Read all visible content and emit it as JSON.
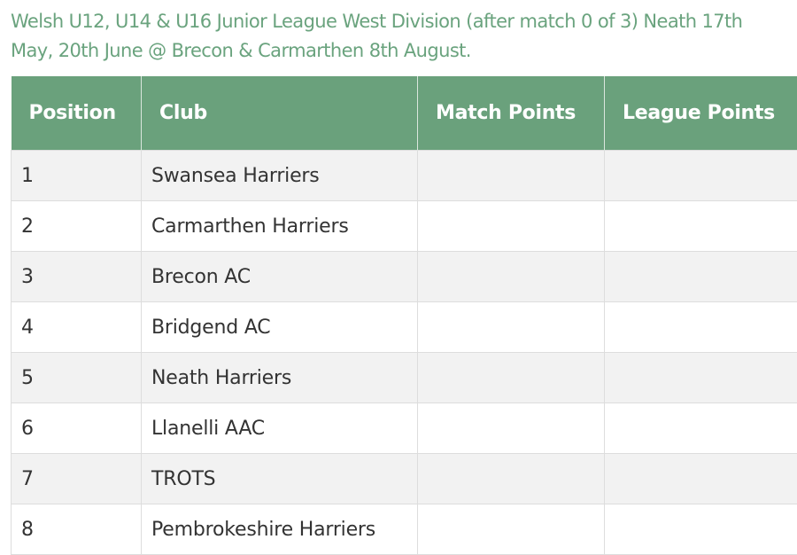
{
  "title": "Welsh U12, U14 & U16 Junior League West Division (after match 0 of 3) Neath 17th May, 20th June @ Brecon & Carmarthen 8th August.",
  "colors": {
    "header_bg": "#6aa17c",
    "title": "#6aa37e",
    "row_alt": "#f2f2f2"
  },
  "table": {
    "headers": [
      "Position",
      "Club",
      "Match Points",
      "League Points"
    ],
    "rows": [
      {
        "position": "1",
        "club": "Swansea Harriers",
        "match_points": "",
        "league_points": ""
      },
      {
        "position": "2",
        "club": "Carmarthen Harriers",
        "match_points": "",
        "league_points": ""
      },
      {
        "position": "3",
        "club": "Brecon AC",
        "match_points": "",
        "league_points": ""
      },
      {
        "position": "4",
        "club": "Bridgend AC",
        "match_points": "",
        "league_points": ""
      },
      {
        "position": "5",
        "club": "Neath Harriers",
        "match_points": "",
        "league_points": ""
      },
      {
        "position": "6",
        "club": "Llanelli AAC",
        "match_points": "",
        "league_points": ""
      },
      {
        "position": "7",
        "club": "TROTS",
        "match_points": "",
        "league_points": ""
      },
      {
        "position": "8",
        "club": "Pembrokeshire Harriers",
        "match_points": "",
        "league_points": ""
      }
    ]
  }
}
